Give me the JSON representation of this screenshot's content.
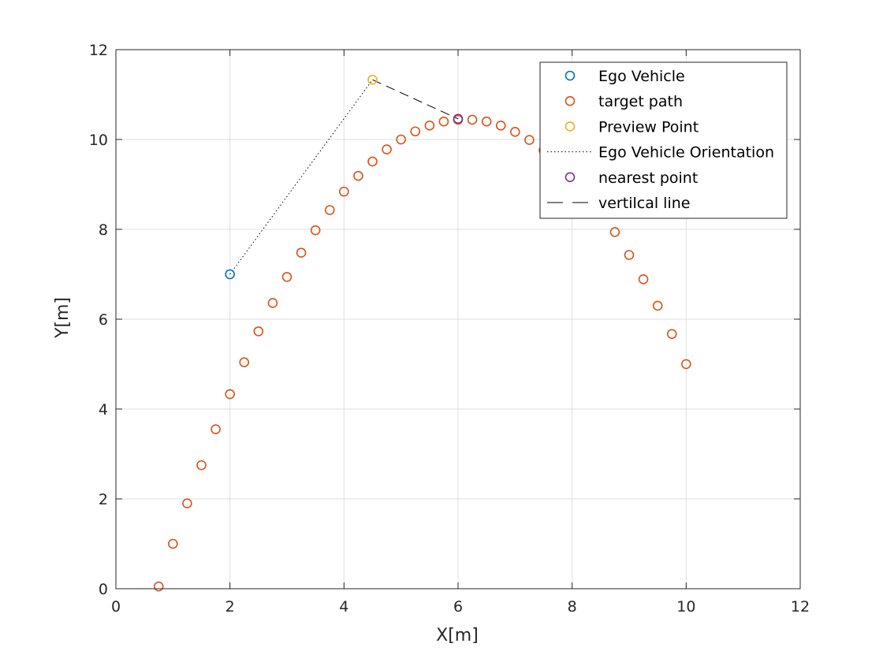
{
  "chart_data": {
    "type": "scatter",
    "title": "",
    "xlabel": "X[m]",
    "ylabel": "Y[m]",
    "xlim": [
      0,
      12
    ],
    "ylim": [
      0,
      12
    ],
    "xticks": [
      0,
      2,
      4,
      6,
      8,
      10,
      12
    ],
    "yticks": [
      0,
      2,
      4,
      6,
      8,
      10,
      12
    ],
    "grid": true,
    "legend_position": "top-right",
    "series": [
      {
        "name": "Ego Vehicle",
        "kind": "marker",
        "color": "#0072BD",
        "x": [
          2.0
        ],
        "y": [
          7.0
        ]
      },
      {
        "name": "target path",
        "kind": "marker",
        "color": "#D95319",
        "x": [
          0.75,
          1.0,
          1.25,
          1.5,
          1.75,
          2.0,
          2.25,
          2.5,
          2.75,
          3.0,
          3.25,
          3.5,
          3.75,
          4.0,
          4.25,
          4.5,
          4.75,
          5.0,
          5.25,
          5.5,
          5.75,
          6.0,
          6.25,
          6.5,
          6.75,
          7.0,
          7.25,
          7.5,
          7.75,
          8.0,
          8.25,
          8.5,
          8.75,
          9.0,
          9.25,
          9.5,
          9.75,
          10.0
        ],
        "y": [
          0.05,
          1.0,
          1.9,
          2.75,
          3.55,
          4.33,
          5.04,
          5.73,
          6.36,
          6.94,
          7.48,
          7.98,
          8.43,
          8.84,
          9.19,
          9.51,
          9.78,
          10.0,
          10.18,
          10.31,
          10.4,
          10.44,
          10.44,
          10.4,
          10.31,
          10.17,
          9.99,
          9.76,
          9.5,
          9.18,
          8.82,
          8.4,
          7.94,
          7.43,
          6.89,
          6.3,
          5.67,
          5.0
        ]
      },
      {
        "name": "Preview Point",
        "kind": "marker",
        "color": "#EDB120",
        "x": [
          4.5
        ],
        "y": [
          11.33
        ]
      },
      {
        "name": "Ego Vehicle Orientation",
        "kind": "dotted-line",
        "color": "#000000",
        "x": [
          2.0,
          4.5
        ],
        "y": [
          7.0,
          11.33
        ]
      },
      {
        "name": "nearest point",
        "kind": "marker",
        "color": "#7E2F8E",
        "x": [
          6.0
        ],
        "y": [
          10.46
        ]
      },
      {
        "name": "vertilcal line",
        "kind": "dashed-line",
        "color": "#000000",
        "x": [
          4.5,
          6.0
        ],
        "y": [
          11.33,
          10.46
        ]
      }
    ]
  }
}
